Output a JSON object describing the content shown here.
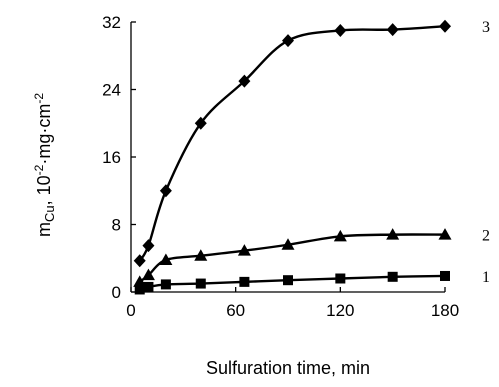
{
  "chart_data": {
    "type": "line",
    "xlabel": "Sulfuration time, min",
    "ylabel": {
      "base": "m",
      "subscript": "Cu",
      "rest": ", 10",
      "sup": "-2",
      "rest2": "·mg·cm",
      "sup2": "-2"
    },
    "xlim": [
      0,
      180
    ],
    "ylim": [
      0,
      32
    ],
    "x_ticks": [
      0,
      60,
      120,
      180
    ],
    "y_ticks": [
      0,
      8,
      16,
      24,
      32
    ],
    "grid": false,
    "series": [
      {
        "name": "1",
        "marker": "square",
        "x": [
          5,
          10,
          20,
          40,
          65,
          90,
          120,
          150,
          180
        ],
        "y": [
          0.3,
          0.6,
          0.9,
          1.0,
          1.2,
          1.4,
          1.6,
          1.8,
          1.9
        ]
      },
      {
        "name": "2",
        "marker": "triangle",
        "x": [
          5,
          10,
          20,
          40,
          65,
          90,
          120,
          150,
          180
        ],
        "y": [
          1.2,
          2.0,
          3.8,
          4.3,
          4.9,
          5.6,
          6.6,
          6.8,
          6.8
        ]
      },
      {
        "name": "3",
        "marker": "diamond",
        "x": [
          5,
          10,
          20,
          40,
          65,
          90,
          120,
          150,
          180
        ],
        "y": [
          3.7,
          5.5,
          12.0,
          20.0,
          25.0,
          29.8,
          31.0,
          31.1,
          31.5
        ]
      }
    ]
  }
}
